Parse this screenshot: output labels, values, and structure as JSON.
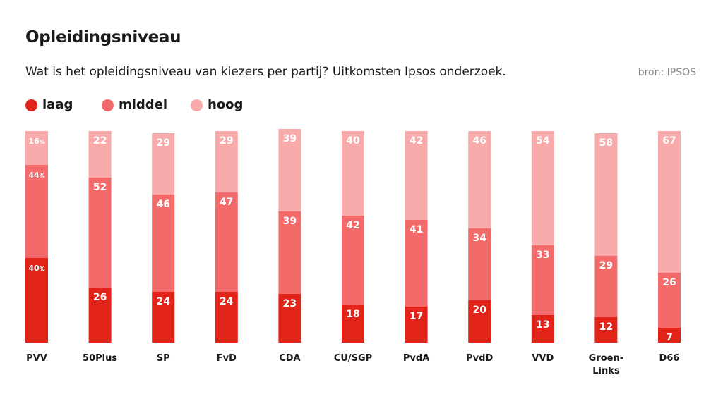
{
  "header": {
    "title": "Opleidingsniveau",
    "subtitle": "Wat is het opleidingsniveau van kiezers per partij? Uitkomsten Ipsos onderzoek.",
    "source": "bron: IPSOS"
  },
  "legend": {
    "items": [
      {
        "label": "laag",
        "color": "#e2231a"
      },
      {
        "label": "middel",
        "color": "#f26a6a"
      },
      {
        "label": "hoog",
        "color": "#f9abab"
      }
    ]
  },
  "chart_data": {
    "type": "bar",
    "stacked": true,
    "orientation": "vertical",
    "categories": [
      "PVV",
      "50Plus",
      "SP",
      "FvD",
      "CDA",
      "CU/SGP",
      "PvdA",
      "PvdD",
      "VVD",
      "Groen-\nLinks",
      "D66"
    ],
    "series": [
      {
        "name": "laag",
        "color": "#e2231a",
        "values": [
          40,
          26,
          24,
          24,
          23,
          18,
          17,
          20,
          13,
          12,
          7
        ]
      },
      {
        "name": "middel",
        "color": "#f26a6a",
        "values": [
          44,
          52,
          46,
          47,
          39,
          42,
          41,
          34,
          33,
          29,
          26
        ]
      },
      {
        "name": "hoog",
        "color": "#f9abab",
        "values": [
          16,
          22,
          29,
          29,
          39,
          40,
          42,
          46,
          54,
          58,
          67
        ]
      }
    ],
    "percent_suffix_on_first_category": "%",
    "ylim": [
      0,
      100
    ],
    "grid": false,
    "legend_placement": "top-left"
  }
}
